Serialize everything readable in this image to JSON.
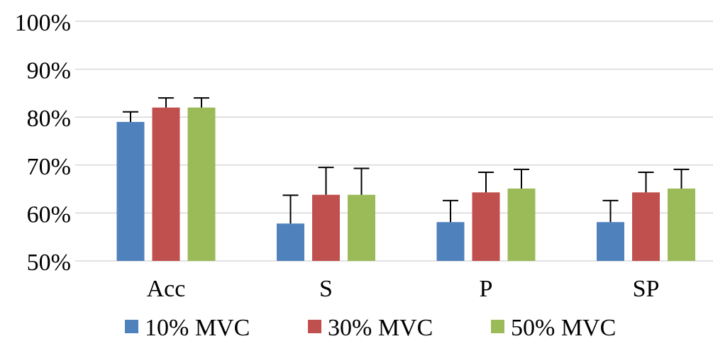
{
  "chart_data": {
    "type": "bar",
    "title": "",
    "xlabel": "",
    "ylabel": "",
    "ylim": [
      50,
      100
    ],
    "ytick_values": [
      50,
      60,
      70,
      80,
      90,
      100
    ],
    "ytick_labels": [
      "50%",
      "60%",
      "70%",
      "80%",
      "90%",
      "100%"
    ],
    "categories": [
      "Acc",
      "S",
      "P",
      "SP"
    ],
    "series": [
      {
        "name": "10% MVC",
        "color": "#4f81bd",
        "values": [
          79,
          57.8,
          58.1,
          58.1
        ],
        "errors": [
          2.1,
          5.9,
          4.5,
          4.5
        ]
      },
      {
        "name": "30% MVC",
        "color": "#c0504d",
        "values": [
          82,
          63.8,
          64.3,
          64.3
        ],
        "errors": [
          2.0,
          5.7,
          4.2,
          4.2
        ]
      },
      {
        "name": "50% MVC",
        "color": "#9bbb59",
        "values": [
          82,
          63.8,
          65.1,
          65.1
        ],
        "errors": [
          2.0,
          5.5,
          4.0,
          4.0
        ]
      }
    ],
    "grid": true,
    "legend_position": "bottom"
  }
}
